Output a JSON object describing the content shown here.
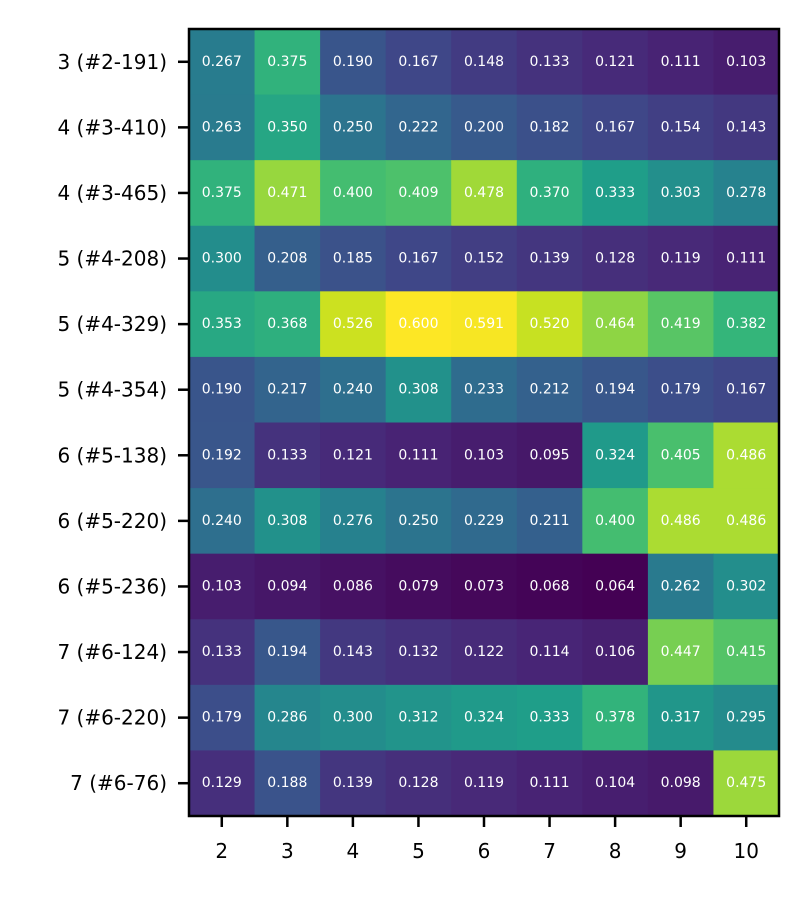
{
  "chart_data": {
    "type": "heatmap",
    "title": "",
    "xlabel": "",
    "ylabel": "",
    "x_categories": [
      "2",
      "3",
      "4",
      "5",
      "6",
      "7",
      "8",
      "9",
      "10"
    ],
    "y_categories": [
      "3 (#2-191)",
      "4 (#3-410)",
      "4 (#3-465)",
      "5 (#4-208)",
      "5 (#4-329)",
      "5 (#4-354)",
      "6 (#5-138)",
      "6 (#5-220)",
      "6 (#5-236)",
      "7 (#6-124)",
      "7 (#6-220)",
      "7 (#6-76)"
    ],
    "values": [
      [
        0.267,
        0.375,
        0.19,
        0.167,
        0.148,
        0.133,
        0.121,
        0.111,
        0.103
      ],
      [
        0.263,
        0.35,
        0.25,
        0.222,
        0.2,
        0.182,
        0.167,
        0.154,
        0.143
      ],
      [
        0.375,
        0.471,
        0.4,
        0.409,
        0.478,
        0.37,
        0.333,
        0.303,
        0.278
      ],
      [
        0.3,
        0.208,
        0.185,
        0.167,
        0.152,
        0.139,
        0.128,
        0.119,
        0.111
      ],
      [
        0.353,
        0.368,
        0.526,
        0.6,
        0.591,
        0.52,
        0.464,
        0.419,
        0.382
      ],
      [
        0.19,
        0.217,
        0.24,
        0.308,
        0.233,
        0.212,
        0.194,
        0.179,
        0.167
      ],
      [
        0.192,
        0.133,
        0.121,
        0.111,
        0.103,
        0.095,
        0.324,
        0.405,
        0.486
      ],
      [
        0.24,
        0.308,
        0.276,
        0.25,
        0.229,
        0.211,
        0.4,
        0.486,
        0.486
      ],
      [
        0.103,
        0.094,
        0.086,
        0.079,
        0.073,
        0.068,
        0.064,
        0.262,
        0.302
      ],
      [
        0.133,
        0.194,
        0.143,
        0.132,
        0.122,
        0.114,
        0.106,
        0.447,
        0.415
      ],
      [
        0.179,
        0.286,
        0.3,
        0.312,
        0.324,
        0.333,
        0.378,
        0.317,
        0.295
      ],
      [
        0.129,
        0.188,
        0.139,
        0.128,
        0.119,
        0.111,
        0.104,
        0.098,
        0.475
      ]
    ],
    "value_format": "0.000",
    "colormap": "viridis",
    "color_range": [
      0.064,
      0.6
    ],
    "show_cell_labels": true,
    "grid": false,
    "legend": "none"
  }
}
